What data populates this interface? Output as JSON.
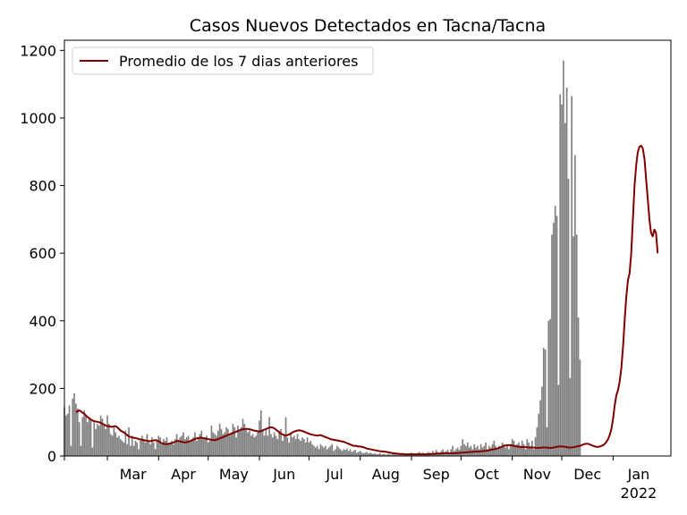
{
  "chart_data": {
    "type": "bar",
    "title": "Casos Nuevos Detectados en Tacna/Tacna",
    "xlabel": "",
    "ylabel": "",
    "ylim": [
      0,
      1230
    ],
    "yticks": [
      0,
      200,
      400,
      600,
      800,
      1000,
      1200
    ],
    "xticks": [
      {
        "label": "Mar",
        "date": "2021-03-01"
      },
      {
        "label": "Apr",
        "date": "2021-04-01"
      },
      {
        "label": "May",
        "date": "2021-05-01"
      },
      {
        "label": "Jun",
        "date": "2021-06-01"
      },
      {
        "label": "Jul",
        "date": "2021-07-01"
      },
      {
        "label": "Aug",
        "date": "2021-08-01"
      },
      {
        "label": "Sep",
        "date": "2021-09-01"
      },
      {
        "label": "Oct",
        "date": "2021-10-01"
      },
      {
        "label": "Nov",
        "date": "2021-11-01"
      },
      {
        "label": "Dec",
        "date": "2021-12-01"
      },
      {
        "label": "Jan",
        "date": "2022-01-01"
      }
    ],
    "year_label": "2022",
    "legend": {
      "entries": [
        "Promedio de los 7 dias anteriores"
      ],
      "placement": "upper-left"
    },
    "grid": false,
    "series": [
      {
        "name": "",
        "kind": "bar",
        "color": "#808080",
        "start_date": "2021-02-03",
        "values": [
          145,
          120,
          125,
          150,
          30,
          170,
          185,
          155,
          140,
          100,
          30,
          115,
          135,
          120,
          100,
          110,
          105,
          25,
          100,
          80,
          95,
          90,
          120,
          110,
          90,
          80,
          120,
          95,
          65,
          60,
          85,
          70,
          55,
          60,
          50,
          45,
          40,
          75,
          35,
          85,
          30,
          60,
          30,
          45,
          40,
          20,
          45,
          60,
          50,
          40,
          65,
          45,
          35,
          55,
          40,
          20,
          45,
          60,
          55,
          40,
          50,
          45,
          55,
          35,
          40,
          45,
          35,
          50,
          65,
          45,
          55,
          60,
          70,
          50,
          55,
          60,
          45,
          50,
          55,
          70,
          45,
          55,
          65,
          75,
          50,
          55,
          60,
          40,
          45,
          90,
          70,
          65,
          60,
          75,
          95,
          80,
          65,
          70,
          85,
          80,
          60,
          70,
          95,
          85,
          55,
          90,
          75,
          85,
          110,
          95,
          80,
          70,
          75,
          60,
          65,
          55,
          60,
          70,
          105,
          135,
          75,
          60,
          80,
          60,
          115,
          65,
          55,
          70,
          60,
          50,
          75,
          80,
          45,
          60,
          115,
          55,
          40,
          70,
          55,
          60,
          50,
          65,
          50,
          45,
          55,
          50,
          40,
          55,
          40,
          45,
          35,
          30,
          25,
          30,
          20,
          35,
          30,
          25,
          30,
          20,
          25,
          30,
          35,
          15,
          20,
          30,
          25,
          20,
          15,
          20,
          18,
          22,
          15,
          20,
          12,
          15,
          18,
          10,
          12,
          15,
          10,
          8,
          10,
          12,
          8,
          10,
          8,
          6,
          8,
          5,
          6,
          8,
          4,
          6,
          5,
          4,
          6,
          5,
          4,
          6,
          5,
          6,
          4,
          8,
          5,
          6,
          5,
          4,
          8,
          6,
          10,
          5,
          8,
          6,
          10,
          12,
          8,
          10,
          6,
          8,
          12,
          10,
          8,
          15,
          10,
          18,
          12,
          10,
          15,
          20,
          12,
          15,
          18,
          10,
          20,
          30,
          15,
          20,
          25,
          18,
          30,
          50,
          35,
          30,
          40,
          25,
          30,
          20,
          35,
          25,
          30,
          20,
          35,
          25,
          30,
          40,
          20,
          30,
          25,
          35,
          45,
          30,
          20,
          30,
          25,
          40,
          35,
          25,
          30,
          20,
          35,
          50,
          45,
          30,
          35,
          40,
          30,
          45,
          35,
          20,
          50,
          40,
          30,
          45,
          20,
          55,
          85,
          125,
          165,
          205,
          320,
          315,
          85,
          400,
          405,
          655,
          690,
          740,
          710,
          210,
          1070,
          1040,
          1170,
          985,
          1090,
          820,
          230,
          1065,
          650,
          890,
          655,
          410,
          285
        ]
      },
      {
        "name": "Promedio de los 7 dias anteriores",
        "kind": "line",
        "color": "#800000",
        "start_date": "2021-02-10",
        "values": [
          130,
          132,
          135,
          132,
          128,
          125,
          120,
          115,
          112,
          108,
          105,
          103,
          102,
          101,
          100,
          98,
          95,
          93,
          90,
          88,
          88,
          87,
          86,
          88,
          88,
          85,
          80,
          75,
          72,
          70,
          65,
          62,
          58,
          56,
          55,
          54,
          53,
          52,
          50,
          49,
          48,
          47,
          46,
          45,
          44,
          44,
          45,
          46,
          47,
          46,
          44,
          40,
          38,
          36,
          35,
          35,
          36,
          37,
          38,
          40,
          42,
          44,
          45,
          43,
          42,
          41,
          40,
          41,
          42,
          44,
          46,
          48,
          50,
          52,
          53,
          54,
          54,
          53,
          52,
          51,
          50,
          49,
          48,
          47,
          47,
          48,
          50,
          52,
          54,
          56,
          58,
          60,
          62,
          64,
          66,
          68,
          70,
          72,
          74,
          76,
          78,
          79,
          80,
          80,
          80,
          79,
          78,
          76,
          75,
          74,
          73,
          72,
          74,
          76,
          78,
          80,
          82,
          84,
          85,
          84,
          82,
          78,
          74,
          70,
          66,
          64,
          62,
          60,
          62,
          64,
          66,
          70,
          72,
          74,
          75,
          76,
          75,
          74,
          72,
          70,
          68,
          66,
          64,
          63,
          62,
          61,
          60,
          61,
          62,
          60,
          58,
          56,
          54,
          52,
          50,
          49,
          48,
          47,
          46,
          45,
          44,
          43,
          42,
          40,
          38,
          36,
          34,
          32,
          30,
          30,
          29,
          28,
          28,
          27,
          26,
          24,
          22,
          21,
          20,
          19,
          18,
          17,
          16,
          15,
          14,
          14,
          13,
          13,
          12,
          11,
          10,
          9,
          8,
          8,
          7,
          7,
          6,
          6,
          6,
          5,
          5,
          5,
          5,
          5,
          5,
          5,
          5,
          5,
          5,
          5,
          5,
          5,
          5,
          5,
          5,
          6,
          6,
          6,
          7,
          7,
          7,
          7,
          8,
          8,
          8,
          8,
          8,
          8,
          8,
          8,
          9,
          9,
          9,
          10,
          10,
          10,
          11,
          11,
          12,
          12,
          12,
          13,
          13,
          13,
          13,
          14,
          14,
          15,
          15,
          16,
          17,
          18,
          19,
          20,
          21,
          22,
          24,
          26,
          28,
          30,
          31,
          32,
          32,
          32,
          31,
          30,
          29,
          28,
          27,
          27,
          26,
          26,
          26,
          26,
          25,
          25,
          25,
          25,
          24,
          24,
          24,
          24,
          25,
          25,
          25,
          25,
          24,
          24,
          24,
          25,
          26,
          27,
          28,
          28,
          28,
          28,
          27,
          26,
          25,
          25,
          25,
          26,
          27,
          28,
          29,
          30,
          32,
          34,
          36,
          36,
          36,
          34,
          32,
          30,
          28,
          27,
          27,
          28,
          30,
          32,
          36,
          42,
          50,
          62,
          80,
          110,
          150,
          180,
          195,
          220,
          260,
          320,
          400,
          470,
          520,
          540,
          600,
          700,
          800,
          860,
          900,
          915,
          918,
          910,
          880,
          820,
          760,
          700,
          660,
          650,
          670,
          660,
          600
        ]
      }
    ]
  }
}
